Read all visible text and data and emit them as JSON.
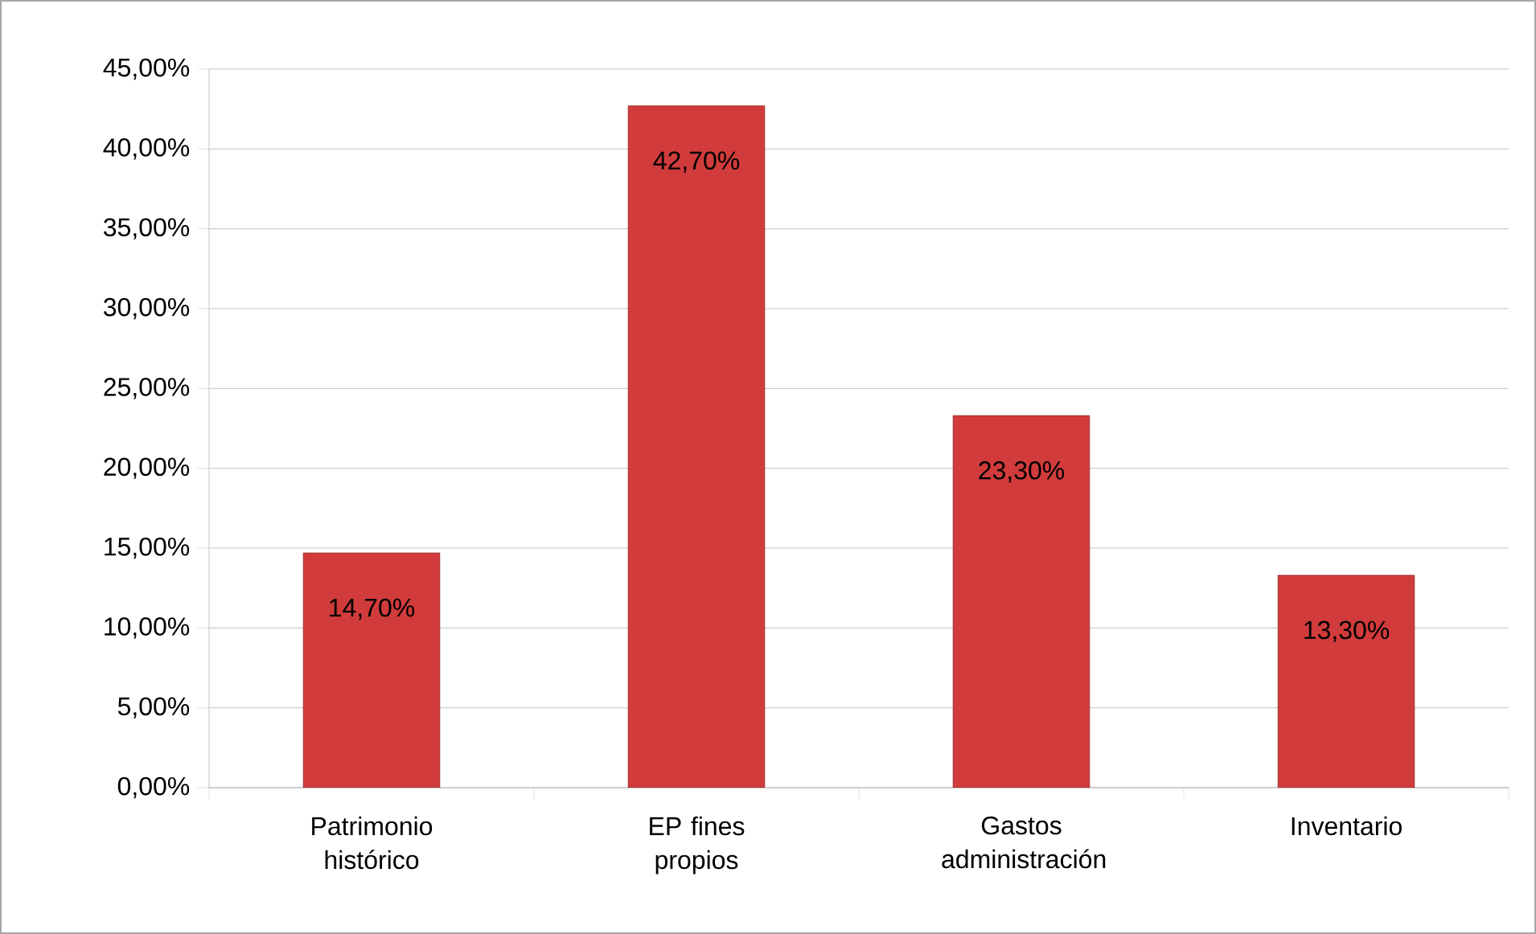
{
  "chart_data": {
    "type": "bar",
    "categories": [
      "Patrimonio histórico",
      "EP fines propios",
      "Gastos administración",
      "Inventario"
    ],
    "values": [
      14.7,
      42.7,
      23.3,
      13.3
    ],
    "value_labels": [
      "14,70%",
      "42,70%",
      "23,30%",
      "13,30%"
    ],
    "color": "#d13b3b",
    "ylim": [
      0,
      45
    ],
    "yticks": [
      {
        "value": 0,
        "label": "0,00%"
      },
      {
        "value": 5,
        "label": "5,00%"
      },
      {
        "value": 10,
        "label": "10,00%"
      },
      {
        "value": 15,
        "label": "15,00%"
      },
      {
        "value": 20,
        "label": "20,00%"
      },
      {
        "value": 25,
        "label": "25,00%"
      },
      {
        "value": 30,
        "label": "30,00%"
      },
      {
        "value": 35,
        "label": "35,00%"
      },
      {
        "value": 40,
        "label": "40,00%"
      },
      {
        "value": 45,
        "label": "45,00%"
      }
    ],
    "grid": "y"
  }
}
